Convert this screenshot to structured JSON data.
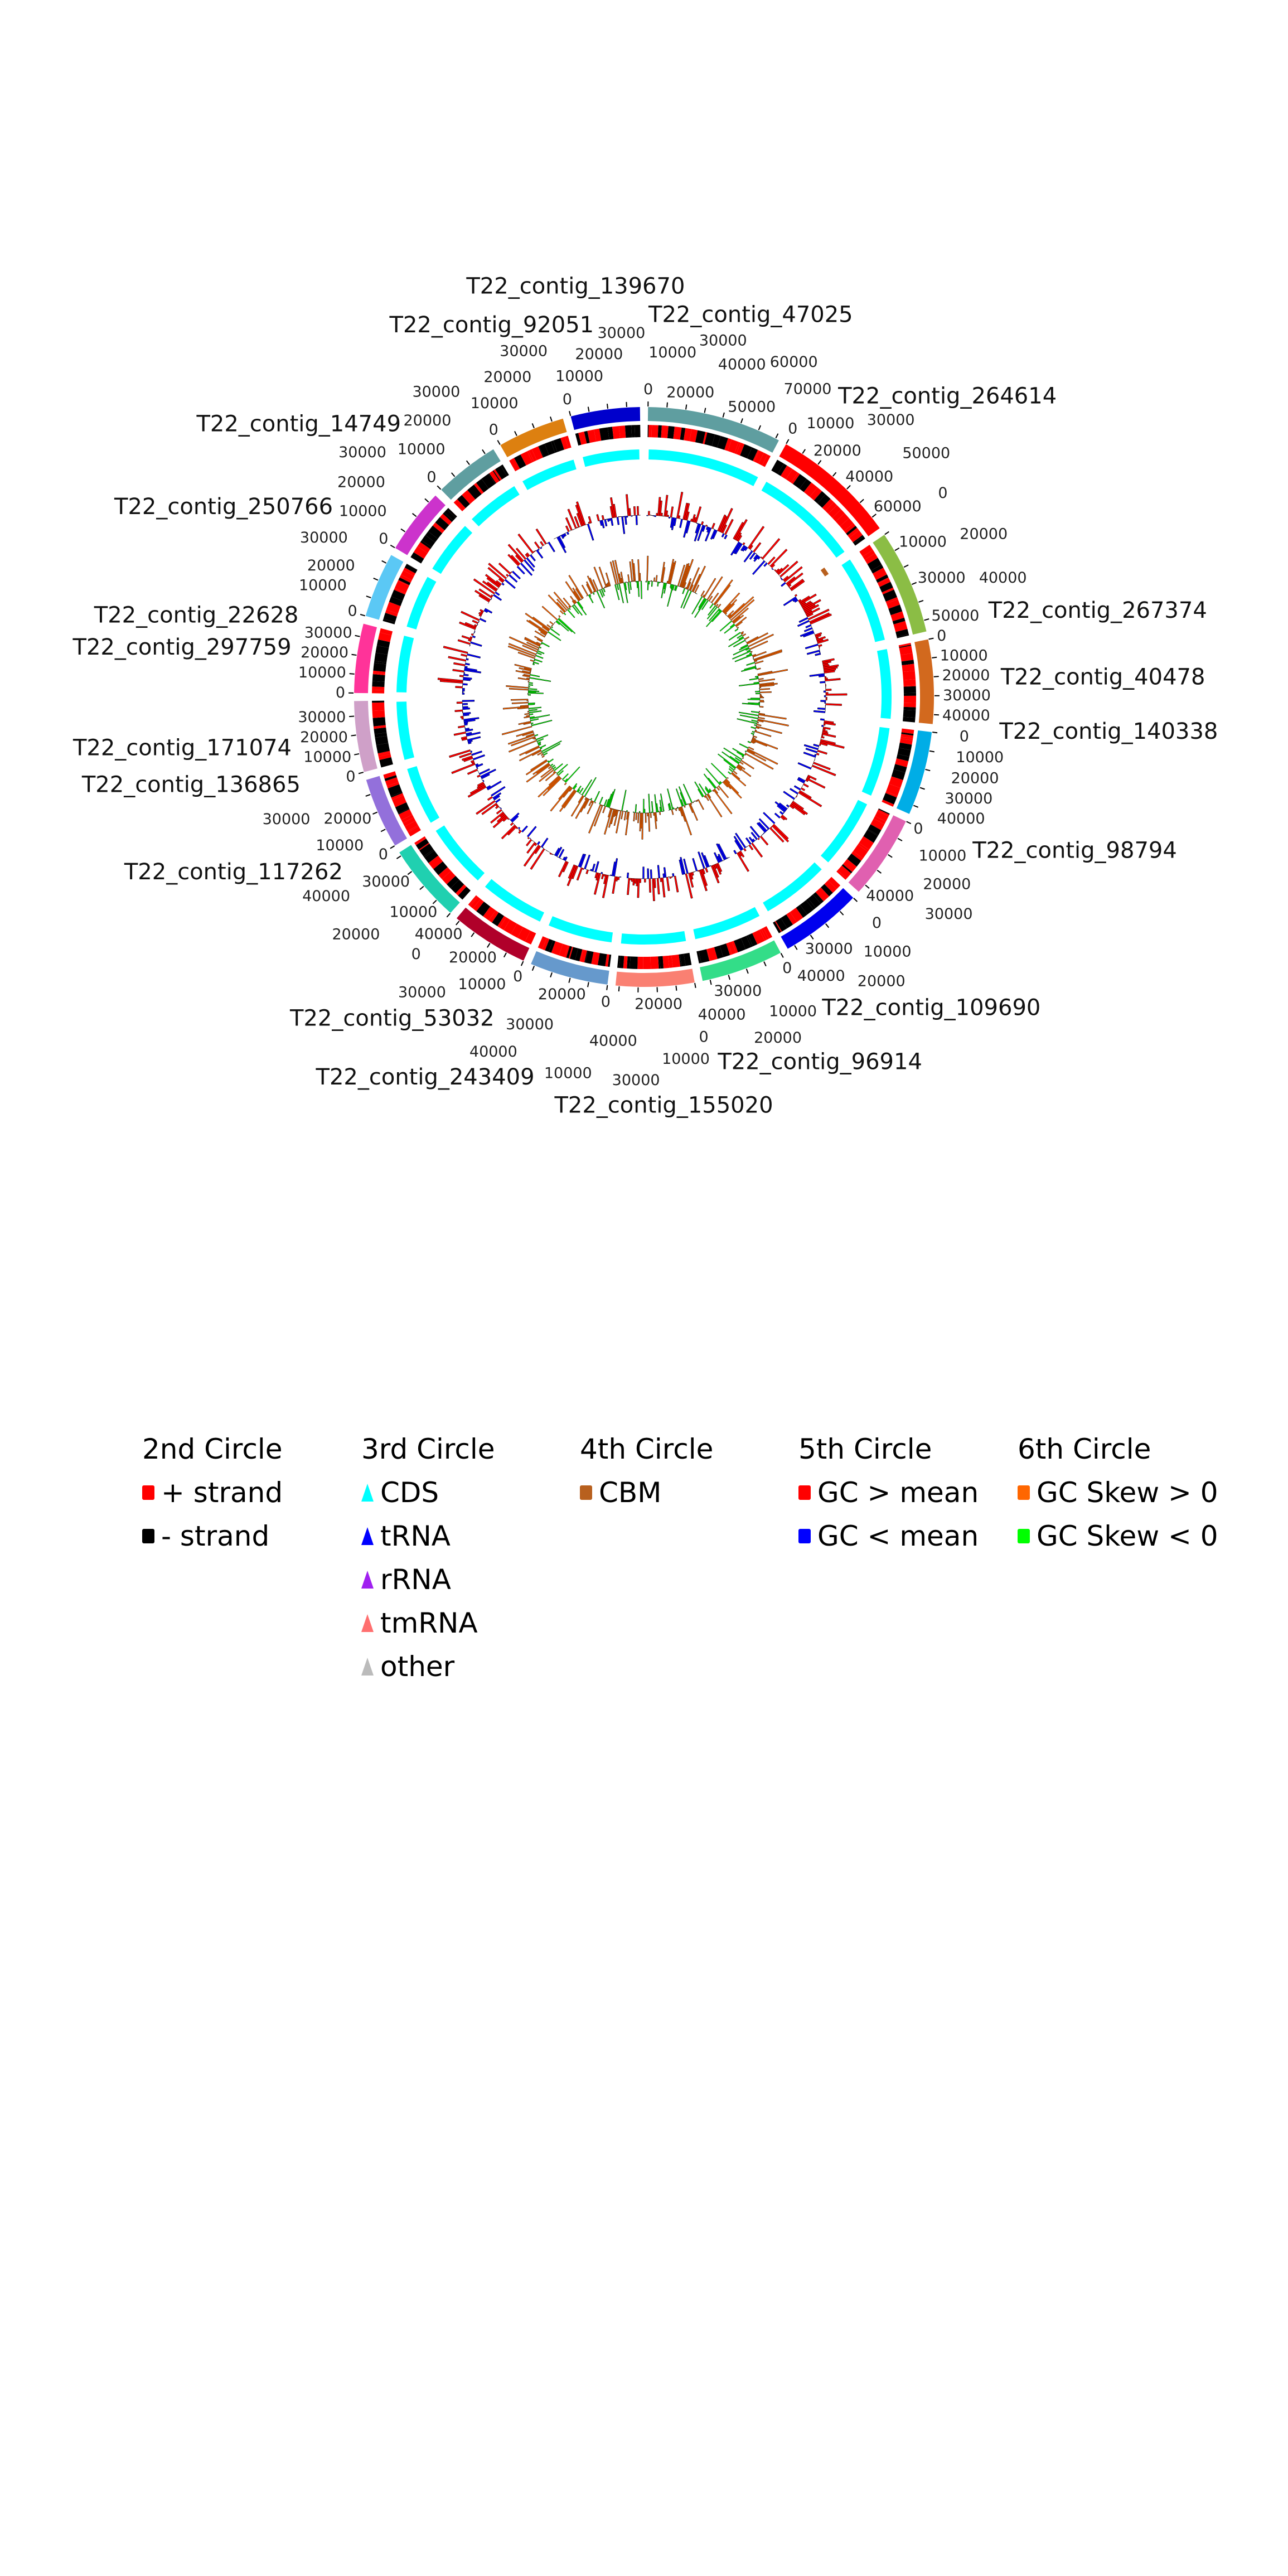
{
  "contigs": [
    {
      "name": "T22_contig_47025",
      "length": 72000,
      "color": "#5F9EA0"
    },
    {
      "name": "T22_contig_264614",
      "length": 67000,
      "color": "#FF0000"
    },
    {
      "name": "T22_contig_267374",
      "length": 56000,
      "color": "#8BBD45"
    },
    {
      "name": "T22_contig_40478",
      "length": 45000,
      "color": "#D2691E"
    },
    {
      "name": "T22_contig_140338",
      "length": 45000,
      "color": "#00ADE6"
    },
    {
      "name": "T22_contig_98794",
      "length": 45000,
      "color": "#E060B0"
    },
    {
      "name": "T22_contig_109690",
      "length": 44000,
      "color": "#0000EE"
    },
    {
      "name": "T22_contig_96914",
      "length": 44000,
      "color": "#33DD88"
    },
    {
      "name": "T22_contig_155020",
      "length": 42000,
      "color": "#FA8072"
    },
    {
      "name": "T22_contig_243409",
      "length": 42000,
      "color": "#6699CC"
    },
    {
      "name": "T22_contig_53032",
      "length": 42000,
      "color": "#B0002A"
    },
    {
      "name": "T22_contig_117262",
      "length": 42000,
      "color": "#20D0B0"
    },
    {
      "name": "T22_contig_136865",
      "length": 38000,
      "color": "#9370DB"
    },
    {
      "name": "T22_contig_171074",
      "length": 38000,
      "color": "#CFA0C8"
    },
    {
      "name": "T22_contig_297759",
      "length": 37000,
      "color": "#FF3399"
    },
    {
      "name": "T22_contig_22628",
      "length": 35000,
      "color": "#5BC8F5"
    },
    {
      "name": "T22_contig_250766",
      "length": 35000,
      "color": "#CC33CC"
    },
    {
      "name": "T22_contig_14749",
      "length": 35000,
      "color": "#5F9EA0"
    },
    {
      "name": "T22_contig_92051",
      "length": 36000,
      "color": "#DD8010"
    },
    {
      "name": "T22_contig_139670",
      "length": 37000,
      "color": "#0000CC"
    }
  ],
  "colors": {
    "plus_strand": "#FF0000",
    "minus_strand": "#000000",
    "cds": "#00FFFF",
    "trna": "#0000FF",
    "rrna": "#A020F0",
    "tmrna": "#FF6F6F",
    "other": "#BBBBBB",
    "cbm": "#B8601E",
    "gc_high": "#FF0000",
    "gc_low": "#0000FF",
    "skew_pos": "#FF6600",
    "skew_neg": "#00FF00"
  },
  "legend": [
    {
      "title": "2nd Circle",
      "items": [
        {
          "label": "+ strand",
          "color": "#FF0000",
          "shape": "square"
        },
        {
          "label": "- strand",
          "color": "#000000",
          "shape": "square"
        }
      ]
    },
    {
      "title": "3rd Circle",
      "items": [
        {
          "label": "CDS",
          "color": "#00FFFF",
          "shape": "triangle"
        },
        {
          "label": "tRNA",
          "color": "#0000FF",
          "shape": "triangle"
        },
        {
          "label": "rRNA",
          "color": "#A020F0",
          "shape": "triangle"
        },
        {
          "label": "tmRNA",
          "color": "#FF6F6F",
          "shape": "triangle"
        },
        {
          "label": "other",
          "color": "#BBBBBB",
          "shape": "triangle"
        }
      ]
    },
    {
      "title": "4th Circle",
      "items": [
        {
          "label": "CBM",
          "color": "#B8601E",
          "shape": "square"
        }
      ]
    },
    {
      "title": "5th Circle",
      "items": [
        {
          "label": "GC > mean",
          "color": "#FF0000",
          "shape": "square"
        },
        {
          "label": "GC < mean",
          "color": "#0000FF",
          "shape": "square"
        }
      ]
    },
    {
      "title": "6th Circle",
      "items": [
        {
          "label": "GC Skew > 0",
          "color": "#FF6600",
          "shape": "square"
        },
        {
          "label": "GC Skew < 0",
          "color": "#00FF00",
          "shape": "square"
        }
      ]
    }
  ]
}
